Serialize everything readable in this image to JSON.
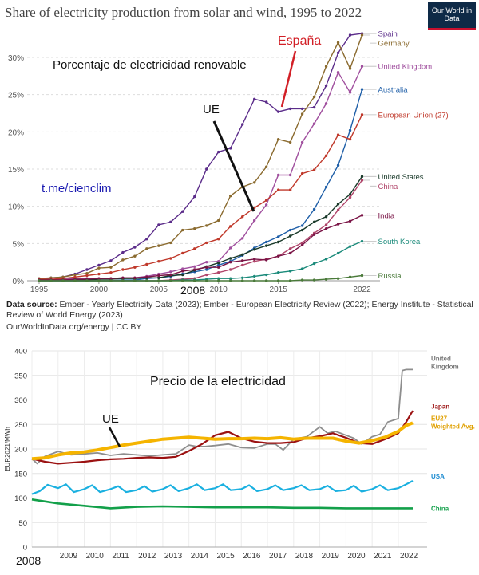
{
  "chart1": {
    "title": "Share of electricity production from solar and wind, 1995 to 2022",
    "logo": "Our World in Data",
    "annotations": {
      "spain_label": "España",
      "renewable_label": "Porcentaje de electricidad renovable",
      "eu_label": "UE",
      "year_marker": "2008",
      "telegram": "t.me/cienclim"
    },
    "source_label": "Data source:",
    "source_text": "Ember - Yearly Electricity Data (2023); Ember - European Electricity Review (2022); Energy Institute - Statistical Review of World Energy (2023)",
    "link_text": "OurWorldInData.org/energy | CC BY"
  },
  "chart2": {
    "annotations": {
      "title": "Precio de la electricidad",
      "eu_label": "UE",
      "year_marker": "2008"
    }
  },
  "chart_data": [
    {
      "type": "line",
      "title": "Share of electricity production from solar and wind, 1995 to 2022",
      "ylim": [
        0,
        33
      ],
      "xlim": [
        1994,
        2023.5
      ],
      "yticks": [
        0,
        5,
        10,
        15,
        20,
        25,
        30
      ],
      "ytick_labels": [
        "0%",
        "5%",
        "10%",
        "15%",
        "20%",
        "25%",
        "30%"
      ],
      "xticks": [
        1995,
        2000,
        2005,
        2010,
        2015,
        2022
      ],
      "grid": true,
      "x": [
        1995,
        1996,
        1997,
        1998,
        1999,
        2000,
        2001,
        2002,
        2003,
        2004,
        2005,
        2006,
        2007,
        2008,
        2009,
        2010,
        2011,
        2012,
        2013,
        2014,
        2015,
        2016,
        2017,
        2018,
        2019,
        2020,
        2021,
        2022
      ],
      "series": [
        {
          "name": "Spain",
          "color": "#5b2c8a",
          "values": [
            0.1,
            0.4,
            0.5,
            0.9,
            1.5,
            2.1,
            2.7,
            3.8,
            4.5,
            5.6,
            7.5,
            7.9,
            9.3,
            11.3,
            15.0,
            17.3,
            17.8,
            21.0,
            24.4,
            24.0,
            22.7,
            23.1,
            23.1,
            23.3,
            26.2,
            30.6,
            33.0,
            33.2
          ]
        },
        {
          "name": "Germany",
          "color": "#8a6a2e",
          "values": [
            0.3,
            0.4,
            0.5,
            0.8,
            1.0,
            1.7,
            1.8,
            2.8,
            3.3,
            4.3,
            4.7,
            5.1,
            6.8,
            7.0,
            7.4,
            8.1,
            11.4,
            12.6,
            13.2,
            15.3,
            19.0,
            18.6,
            22.4,
            24.7,
            28.8,
            32.0,
            28.5,
            33.0
          ]
        },
        {
          "name": "United Kingdom",
          "color": "#a04f9e",
          "values": [
            0.1,
            0.1,
            0.2,
            0.3,
            0.3,
            0.3,
            0.3,
            0.4,
            0.4,
            0.6,
            0.9,
            1.2,
            1.6,
            1.9,
            2.5,
            2.6,
            4.4,
            5.7,
            8.1,
            10.2,
            14.2,
            14.2,
            18.6,
            21.1,
            23.8,
            28.0,
            25.3,
            28.8
          ]
        },
        {
          "name": "Australia",
          "color": "#1f5fa8",
          "values": [
            0.0,
            0.0,
            0.0,
            0.0,
            0.0,
            0.0,
            0.0,
            0.1,
            0.1,
            0.3,
            0.4,
            0.6,
            0.9,
            1.2,
            1.5,
            2.1,
            2.6,
            3.4,
            4.4,
            5.2,
            5.9,
            6.8,
            7.4,
            9.6,
            12.6,
            15.5,
            20.2,
            25.7
          ]
        },
        {
          "name": "European Union (27)",
          "color": "#c0392b",
          "values": [
            0.2,
            0.2,
            0.3,
            0.5,
            0.7,
            0.9,
            1.1,
            1.5,
            1.8,
            2.2,
            2.6,
            3.0,
            3.7,
            4.3,
            5.1,
            5.6,
            7.3,
            8.6,
            9.8,
            10.8,
            12.2,
            12.2,
            14.4,
            14.9,
            16.8,
            19.6,
            19.0,
            22.3
          ]
        },
        {
          "name": "United States",
          "color": "#1a3a2a",
          "values": [
            0.1,
            0.1,
            0.1,
            0.1,
            0.1,
            0.2,
            0.2,
            0.3,
            0.3,
            0.4,
            0.4,
            0.7,
            0.8,
            1.4,
            1.9,
            2.4,
            3.0,
            3.5,
            4.2,
            4.7,
            5.2,
            6.0,
            6.8,
            7.9,
            8.6,
            10.3,
            11.6,
            14.0
          ]
        },
        {
          "name": "China",
          "color": "#b0456a",
          "values": [
            0.0,
            0.0,
            0.0,
            0.0,
            0.0,
            0.0,
            0.0,
            0.0,
            0.0,
            0.0,
            0.0,
            0.1,
            0.2,
            0.3,
            0.8,
            1.1,
            1.5,
            2.1,
            2.6,
            2.9,
            3.3,
            4.3,
            5.1,
            6.4,
            7.5,
            9.5,
            11.2,
            13.5
          ]
        },
        {
          "name": "India",
          "color": "#7a1446",
          "values": [
            0.1,
            0.1,
            0.1,
            0.2,
            0.2,
            0.3,
            0.3,
            0.4,
            0.4,
            0.5,
            0.7,
            0.8,
            1.3,
            1.5,
            1.8,
            1.8,
            2.5,
            2.7,
            2.9,
            2.8,
            3.3,
            3.7,
            4.8,
            6.2,
            7.0,
            7.6,
            8.0,
            8.8
          ]
        },
        {
          "name": "South Korea",
          "color": "#1a8a7a",
          "values": [
            0.0,
            0.0,
            0.0,
            0.0,
            0.0,
            0.0,
            0.0,
            0.0,
            0.0,
            0.0,
            0.0,
            0.0,
            0.1,
            0.1,
            0.2,
            0.3,
            0.3,
            0.4,
            0.6,
            0.8,
            1.1,
            1.3,
            1.6,
            2.3,
            2.9,
            3.7,
            4.6,
            5.3
          ]
        },
        {
          "name": "Russia",
          "color": "#4a7a3a",
          "values": [
            0.0,
            0.0,
            0.0,
            0.0,
            0.0,
            0.0,
            0.0,
            0.0,
            0.0,
            0.0,
            0.0,
            0.0,
            0.0,
            0.0,
            0.0,
            0.0,
            0.0,
            0.0,
            0.0,
            0.0,
            0.0,
            0.0,
            0.1,
            0.1,
            0.2,
            0.3,
            0.5,
            0.7
          ]
        }
      ]
    },
    {
      "type": "line",
      "ylabel": "EUR2021/MWh",
      "ylim": [
        0,
        400
      ],
      "xlim": [
        2008,
        2023.1
      ],
      "yticks": [
        0,
        50,
        100,
        150,
        200,
        250,
        300,
        350,
        400
      ],
      "xticks": [
        2008,
        2009,
        2010,
        2011,
        2012,
        2013,
        2014,
        2015,
        2016,
        2017,
        2018,
        2019,
        2020,
        2021,
        2022
      ],
      "grid": true,
      "series": [
        {
          "name": "United Kingdom",
          "label_lines": [
            "United",
            "Kingdom"
          ],
          "color": "#8e8e8e",
          "x": [
            2008,
            2008.2,
            2008.5,
            2009,
            2009.5,
            2010,
            2010.5,
            2011,
            2011.5,
            2012,
            2012.5,
            2013,
            2013.5,
            2014,
            2014.3,
            2014.6,
            2015,
            2015.5,
            2016,
            2016.5,
            2017,
            2017.3,
            2017.6,
            2018,
            2018.5,
            2019,
            2019.3,
            2019.6,
            2020,
            2020.3,
            2020.6,
            2021,
            2021.3,
            2021.6,
            2022,
            2022.15,
            2022.3,
            2022.55
          ],
          "y": [
            180,
            170,
            185,
            195,
            188,
            190,
            192,
            187,
            190,
            188,
            186,
            188,
            190,
            208,
            205,
            205,
            207,
            210,
            203,
            202,
            210,
            210,
            198,
            220,
            225,
            245,
            232,
            236,
            228,
            222,
            210,
            225,
            230,
            255,
            262,
            360,
            362,
            362
          ]
        },
        {
          "name": "Japan",
          "color": "#9b1111",
          "x": [
            2008,
            2008.5,
            2009,
            2009.5,
            2010,
            2010.5,
            2011,
            2011.5,
            2012,
            2012.5,
            2013,
            2013.5,
            2014,
            2014.5,
            2015,
            2015.5,
            2016,
            2016.5,
            2017,
            2017.5,
            2018,
            2018.5,
            2019,
            2019.5,
            2020,
            2020.5,
            2021,
            2021.5,
            2022,
            2022.3,
            2022.55
          ],
          "y": [
            180,
            174,
            170,
            172,
            174,
            177,
            179,
            180,
            182,
            183,
            182,
            184,
            196,
            210,
            228,
            235,
            222,
            215,
            212,
            212,
            214,
            222,
            226,
            232,
            223,
            212,
            210,
            220,
            232,
            255,
            278
          ]
        },
        {
          "name": "EU27 - Weighted Avg.",
          "label_lines": [
            "EU27 -",
            "Weighted Avg."
          ],
          "color": "#f5b400",
          "x": [
            2008,
            2008.5,
            2009,
            2009.5,
            2010,
            2010.5,
            2011,
            2011.5,
            2012,
            2012.5,
            2013,
            2013.5,
            2014,
            2014.5,
            2015,
            2015.5,
            2016,
            2016.5,
            2017,
            2017.5,
            2018,
            2018.5,
            2019,
            2019.5,
            2020,
            2020.5,
            2021,
            2021.5,
            2022,
            2022.3,
            2022.55
          ],
          "y": [
            180,
            182,
            188,
            192,
            194,
            198,
            203,
            208,
            212,
            216,
            220,
            222,
            224,
            222,
            220,
            221,
            221,
            222,
            221,
            223,
            220,
            222,
            222,
            222,
            216,
            212,
            217,
            224,
            236,
            248,
            253
          ]
        },
        {
          "name": "USA",
          "color": "#1ab0e0",
          "x": [
            2008,
            2008.3,
            2008.6,
            2009,
            2009.3,
            2009.6,
            2010,
            2010.3,
            2010.6,
            2011,
            2011.3,
            2011.6,
            2012,
            2012.3,
            2012.6,
            2013,
            2013.3,
            2013.6,
            2014,
            2014.3,
            2014.6,
            2015,
            2015.3,
            2015.6,
            2016,
            2016.3,
            2016.6,
            2017,
            2017.3,
            2017.6,
            2018,
            2018.3,
            2018.6,
            2019,
            2019.3,
            2019.6,
            2020,
            2020.3,
            2020.6,
            2021,
            2021.3,
            2021.6,
            2022,
            2022.3,
            2022.55
          ],
          "y": [
            108,
            114,
            127,
            120,
            128,
            112,
            118,
            126,
            112,
            118,
            124,
            112,
            116,
            124,
            113,
            118,
            126,
            114,
            120,
            128,
            116,
            120,
            128,
            116,
            118,
            126,
            114,
            118,
            126,
            116,
            120,
            126,
            116,
            118,
            125,
            114,
            116,
            125,
            113,
            118,
            126,
            116,
            120,
            128,
            135
          ]
        },
        {
          "name": "China",
          "color": "#13a04a",
          "x": [
            2008,
            2009,
            2010,
            2011,
            2012,
            2013,
            2014,
            2015,
            2016,
            2017,
            2018,
            2019,
            2020,
            2021,
            2022,
            2022.55
          ],
          "y": [
            97,
            89,
            84,
            79,
            82,
            83,
            82,
            81,
            81,
            81,
            80,
            80,
            79,
            79,
            79,
            79
          ]
        }
      ]
    }
  ]
}
